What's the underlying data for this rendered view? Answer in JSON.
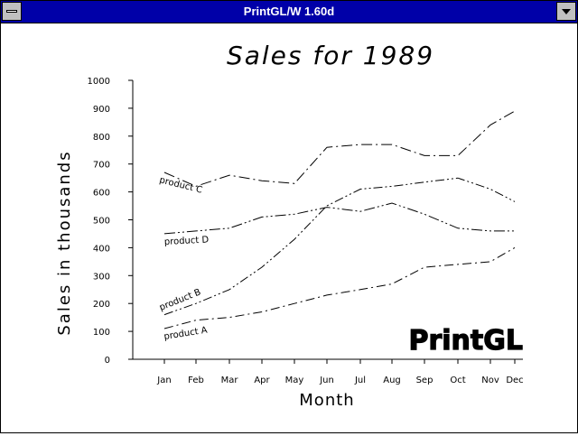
{
  "window": {
    "title": "PrintGL/W 1.60d"
  },
  "icons": {
    "system_menu": "system-menu-icon",
    "minimize": "minimize-arrow-icon"
  },
  "chart_data": {
    "type": "line",
    "title": "Sales  for  1989",
    "xlabel": "Month",
    "ylabel": "Sales  in  thousands",
    "categories": [
      "Jan",
      "Feb",
      "Mar",
      "Apr",
      "May",
      "Jun",
      "Jul",
      "Aug",
      "Sep",
      "Oct",
      "Nov",
      "Dec"
    ],
    "ylim": [
      0,
      1000
    ],
    "yticks": [
      "0",
      "100",
      "200",
      "300",
      "400",
      "500",
      "600",
      "700",
      "800",
      "900",
      "1000"
    ],
    "series": [
      {
        "name": "product  A",
        "values": [
          110,
          140,
          150,
          170,
          200,
          230,
          250,
          270,
          330,
          340,
          350,
          400
        ]
      },
      {
        "name": "product  B",
        "values": [
          160,
          200,
          250,
          330,
          430,
          550,
          610,
          620,
          635,
          650,
          610,
          565
        ]
      },
      {
        "name": "product  C",
        "values": [
          670,
          620,
          660,
          640,
          630,
          760,
          770,
          770,
          730,
          730,
          840,
          890
        ]
      },
      {
        "name": "product  D",
        "values": [
          450,
          460,
          470,
          510,
          520,
          545,
          530,
          560,
          520,
          470,
          460,
          460
        ]
      }
    ],
    "watermark": "PrintGL"
  }
}
